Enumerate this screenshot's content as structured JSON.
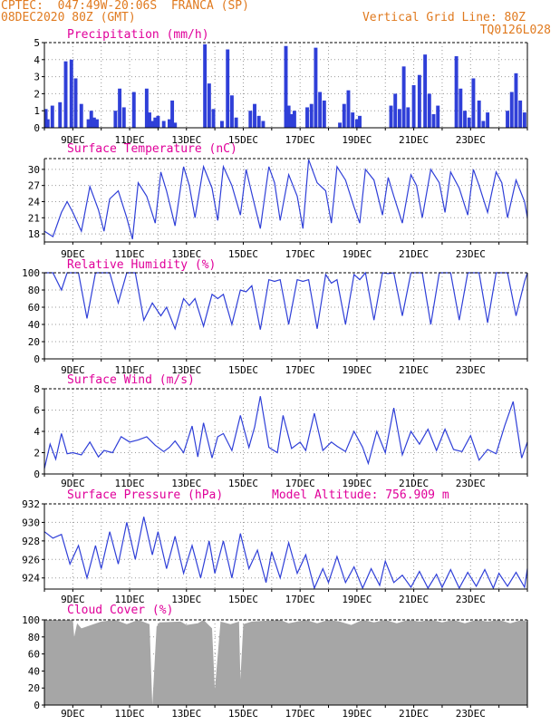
{
  "header": {
    "left_line1": "CPTEC:  047:49W-20:06S  FRANCA (SP)",
    "left_line2": "08DEC2020 80Z (GMT)",
    "right_line1": "Vertical Grid Line: 80Z",
    "right_line2": "TQ0126L028",
    "title_color": "#e07a1f"
  },
  "colors": {
    "label": "#e0009a",
    "series": "#2f3fd8",
    "cloud": "#a6a6a6",
    "grid": "#999999"
  },
  "x_ticks": [
    "9DEC",
    "11DEC",
    "13DEC",
    "15DEC",
    "17DEC",
    "19DEC",
    "21DEC",
    "23DEC"
  ],
  "chart_data": [
    {
      "type": "bar",
      "title": "Precipitation (mm/h)",
      "ylim": [
        0,
        5
      ],
      "yticks": [
        "0",
        "1",
        "2",
        "3",
        "4",
        "5"
      ],
      "grid": true,
      "x_days": [
        0.05,
        0.12,
        0.28,
        0.55,
        0.75,
        0.95,
        1.1,
        1.3,
        1.55,
        1.65,
        1.75,
        1.85,
        2.5,
        2.65,
        2.8,
        3.15,
        3.6,
        3.7,
        3.8,
        3.9,
        4.0,
        4.2,
        4.4,
        4.5,
        4.6,
        5.65,
        5.8,
        5.95,
        6.25,
        6.45,
        6.6,
        6.75,
        7.25,
        7.4,
        7.55,
        7.7,
        8.5,
        8.6,
        8.7,
        8.8,
        9.25,
        9.4,
        9.55,
        9.7,
        9.85,
        10.4,
        10.55,
        10.7,
        10.85,
        11.0,
        11.1,
        12.2,
        12.35,
        12.5,
        12.65,
        12.8,
        13.0,
        13.2,
        13.4,
        13.55,
        13.7,
        13.85,
        14.5,
        14.65,
        14.8,
        14.95,
        15.1,
        15.3,
        15.45,
        15.6,
        16.3,
        16.45,
        16.6,
        16.75,
        16.9
      ],
      "values": [
        1.1,
        0.5,
        1.3,
        1.5,
        3.9,
        4.0,
        2.9,
        1.4,
        0.5,
        1.0,
        0.6,
        0.5,
        1.0,
        2.3,
        1.2,
        2.1,
        2.3,
        0.9,
        0.4,
        0.6,
        0.7,
        0.4,
        0.5,
        1.6,
        0.3,
        4.9,
        2.6,
        1.1,
        0.4,
        4.6,
        1.9,
        0.6,
        1.0,
        1.4,
        0.7,
        0.4,
        4.8,
        1.3,
        0.8,
        1.0,
        1.2,
        1.4,
        4.7,
        2.1,
        1.6,
        0.3,
        1.4,
        2.2,
        0.9,
        0.5,
        0.7,
        1.3,
        2.0,
        1.1,
        3.6,
        1.2,
        2.5,
        3.1,
        4.3,
        2.0,
        0.8,
        1.3,
        4.2,
        2.3,
        1.0,
        0.6,
        2.9,
        1.6,
        0.4,
        0.9,
        1.0,
        2.1,
        3.2,
        1.6,
        0.9
      ]
    },
    {
      "type": "line",
      "title": "Surface Temperature (nC)",
      "ylim": [
        16.5,
        32
      ],
      "yticks": [
        "18",
        "21",
        "24",
        "27",
        "30"
      ],
      "grid": true,
      "x_days": [
        0,
        0.3,
        0.6,
        0.8,
        1.0,
        1.3,
        1.6,
        1.9,
        2.1,
        2.3,
        2.6,
        2.9,
        3.1,
        3.3,
        3.6,
        3.9,
        4.1,
        4.3,
        4.6,
        4.9,
        5.1,
        5.3,
        5.6,
        5.9,
        6.1,
        6.3,
        6.6,
        6.9,
        7.1,
        7.3,
        7.6,
        7.9,
        8.1,
        8.3,
        8.6,
        8.9,
        9.1,
        9.3,
        9.6,
        9.9,
        10.1,
        10.3,
        10.6,
        10.9,
        11.1,
        11.3,
        11.6,
        11.9,
        12.1,
        12.3,
        12.6,
        12.9,
        13.1,
        13.3,
        13.6,
        13.9,
        14.1,
        14.3,
        14.6,
        14.9,
        15.1,
        15.3,
        15.6,
        15.9,
        16.1,
        16.3,
        16.6,
        16.9,
        17.0
      ],
      "values": [
        18.5,
        17.5,
        22.0,
        24.0,
        22.0,
        18.5,
        26.8,
        22.5,
        18.5,
        24.5,
        26.0,
        21.0,
        17.0,
        27.5,
        25.0,
        20.0,
        29.5,
        26.0,
        19.5,
        30.5,
        27.0,
        21.0,
        30.5,
        26.5,
        20.5,
        30.5,
        27.0,
        21.5,
        30.0,
        25.5,
        19.0,
        30.5,
        27.5,
        20.5,
        29.0,
        25.0,
        19.0,
        31.8,
        27.5,
        26.0,
        20.0,
        30.5,
        28.0,
        23.0,
        20.0,
        30.0,
        28.0,
        21.5,
        28.5,
        25.0,
        20.0,
        29.0,
        27.0,
        21.0,
        30.0,
        27.5,
        22.0,
        29.5,
        26.5,
        21.5,
        30.0,
        27.0,
        22.0,
        29.5,
        27.5,
        21.0,
        28.0,
        24.0,
        21.0
      ]
    },
    {
      "type": "line",
      "title": "Relative Humidity (%)",
      "ylim": [
        0,
        100
      ],
      "yticks": [
        "0",
        "20",
        "40",
        "60",
        "80",
        "100"
      ],
      "grid": true,
      "x_days": [
        0,
        0.3,
        0.6,
        0.8,
        1.0,
        1.2,
        1.5,
        1.8,
        2.1,
        2.3,
        2.6,
        2.9,
        3.0,
        3.2,
        3.5,
        3.8,
        4.1,
        4.3,
        4.6,
        4.9,
        5.1,
        5.3,
        5.6,
        5.9,
        6.1,
        6.3,
        6.6,
        6.9,
        7.1,
        7.3,
        7.6,
        7.9,
        8.1,
        8.3,
        8.6,
        8.9,
        9.1,
        9.3,
        9.6,
        9.9,
        10.1,
        10.3,
        10.6,
        10.9,
        11.1,
        11.3,
        11.6,
        11.9,
        12.1,
        12.3,
        12.6,
        12.9,
        13.1,
        13.3,
        13.6,
        13.9,
        14.1,
        14.3,
        14.6,
        14.9,
        15.1,
        15.3,
        15.6,
        15.9,
        16.1,
        16.3,
        16.6,
        16.9,
        17.0
      ],
      "values": [
        100,
        100,
        80,
        100,
        100,
        100,
        47,
        100,
        100,
        100,
        65,
        100,
        100,
        100,
        45,
        65,
        50,
        60,
        35,
        70,
        62,
        70,
        38,
        75,
        70,
        75,
        40,
        80,
        78,
        85,
        34,
        92,
        90,
        92,
        40,
        92,
        90,
        92,
        35,
        98,
        88,
        92,
        40,
        98,
        92,
        100,
        45,
        100,
        99,
        100,
        50,
        100,
        100,
        100,
        40,
        100,
        100,
        100,
        45,
        100,
        100,
        100,
        42,
        100,
        100,
        100,
        50,
        90,
        100
      ]
    },
    {
      "type": "line",
      "title": "Surface Wind (m/s)",
      "ylim": [
        0,
        8
      ],
      "yticks": [
        "0",
        "2",
        "4",
        "6",
        "8"
      ],
      "grid": true,
      "x_days": [
        0,
        0.2,
        0.4,
        0.6,
        0.8,
        1.0,
        1.3,
        1.6,
        1.9,
        2.1,
        2.4,
        2.7,
        3.0,
        3.3,
        3.6,
        3.9,
        4.2,
        4.4,
        4.6,
        4.9,
        5.2,
        5.4,
        5.6,
        5.9,
        6.1,
        6.3,
        6.6,
        6.9,
        7.2,
        7.4,
        7.6,
        7.9,
        8.2,
        8.4,
        8.7,
        9.0,
        9.2,
        9.5,
        9.8,
        10.1,
        10.3,
        10.6,
        10.9,
        11.2,
        11.4,
        11.7,
        12.0,
        12.3,
        12.6,
        12.9,
        13.2,
        13.5,
        13.8,
        14.1,
        14.4,
        14.7,
        15.0,
        15.3,
        15.6,
        15.9,
        16.2,
        16.5,
        16.8,
        17.0
      ],
      "values": [
        0.5,
        2.8,
        1.4,
        3.8,
        1.9,
        2.0,
        1.8,
        3.0,
        1.6,
        2.2,
        2.0,
        3.5,
        3.0,
        3.2,
        3.5,
        2.7,
        2.1,
        2.5,
        3.1,
        2.0,
        4.5,
        1.6,
        4.8,
        1.5,
        3.5,
        3.8,
        2.2,
        5.5,
        2.5,
        4.4,
        7.3,
        2.5,
        2.0,
        5.5,
        2.4,
        3.0,
        2.2,
        5.7,
        2.2,
        3.0,
        2.6,
        2.1,
        4.0,
        2.5,
        1.0,
        4.0,
        2.0,
        6.2,
        1.8,
        4.0,
        2.8,
        4.2,
        2.2,
        4.2,
        2.3,
        2.1,
        3.6,
        1.3,
        2.3,
        1.9,
        4.5,
        6.8,
        1.5,
        3.0
      ]
    },
    {
      "type": "line",
      "title": "Surface Pressure (hPa)",
      "annotation": "Model Altitude: 756.909 m",
      "ylim": [
        922.8,
        932
      ],
      "yticks": [
        "924",
        "926",
        "928",
        "930",
        "932"
      ],
      "grid": true,
      "x_days": [
        0,
        0.3,
        0.6,
        0.9,
        1.2,
        1.5,
        1.8,
        2.0,
        2.3,
        2.6,
        2.9,
        3.2,
        3.5,
        3.8,
        4.0,
        4.3,
        4.6,
        4.9,
        5.2,
        5.5,
        5.8,
        6.0,
        6.3,
        6.6,
        6.9,
        7.2,
        7.5,
        7.8,
        8.0,
        8.3,
        8.6,
        8.9,
        9.2,
        9.5,
        9.8,
        10.0,
        10.3,
        10.6,
        10.9,
        11.2,
        11.5,
        11.8,
        12.0,
        12.3,
        12.6,
        12.9,
        13.2,
        13.5,
        13.8,
        14.0,
        14.3,
        14.6,
        14.9,
        15.2,
        15.5,
        15.8,
        16.0,
        16.3,
        16.6,
        16.9,
        17.0
      ],
      "values": [
        929.0,
        928.3,
        928.7,
        925.5,
        927.5,
        924.0,
        927.5,
        925.0,
        929.0,
        925.5,
        930.0,
        926.0,
        930.6,
        926.5,
        929.0,
        925.0,
        928.5,
        924.5,
        927.5,
        924.0,
        928.0,
        924.5,
        928.0,
        924.0,
        928.8,
        925.0,
        927.0,
        923.5,
        926.8,
        924.0,
        927.8,
        924.5,
        926.5,
        922.9,
        925.0,
        923.5,
        926.3,
        923.5,
        925.2,
        922.9,
        925.0,
        923.2,
        925.8,
        923.5,
        924.3,
        923.0,
        924.7,
        922.9,
        924.4,
        923.0,
        924.9,
        922.9,
        924.6,
        923.1,
        924.9,
        922.9,
        924.5,
        923.1,
        924.6,
        923.0,
        925.0
      ]
    },
    {
      "type": "area",
      "title": "Cloud Cover (%)",
      "ylim": [
        0,
        100
      ],
      "yticks": [
        "0",
        "20",
        "40",
        "60",
        "80",
        "100"
      ],
      "grid": true,
      "x_days": [
        0,
        1.0,
        1.05,
        1.15,
        1.3,
        2.0,
        2.5,
        2.9,
        3.3,
        3.7,
        3.8,
        3.95,
        4.05,
        4.8,
        5.0,
        5.4,
        5.6,
        5.9,
        6.0,
        6.2,
        6.55,
        6.85,
        6.9,
        7.0,
        7.3,
        8.3,
        8.6,
        8.9,
        9.2,
        9.6,
        10.0,
        10.4,
        10.8,
        11.2,
        11.6,
        12.0,
        12.4,
        12.8,
        13.2,
        13.6,
        14.0,
        14.4,
        14.8,
        15.2,
        15.6,
        16.0,
        16.4,
        16.8,
        17.0
      ],
      "values": [
        100,
        100,
        80,
        96,
        90,
        98,
        100,
        95,
        100,
        95,
        0,
        92,
        97,
        98,
        94,
        96,
        100,
        90,
        18,
        98,
        95,
        98,
        30,
        95,
        98,
        100,
        96,
        98,
        100,
        96,
        100,
        98,
        94,
        100,
        97,
        100,
        96,
        100,
        98,
        100,
        97,
        100,
        96,
        100,
        98,
        100,
        96,
        100,
        98
      ]
    }
  ]
}
